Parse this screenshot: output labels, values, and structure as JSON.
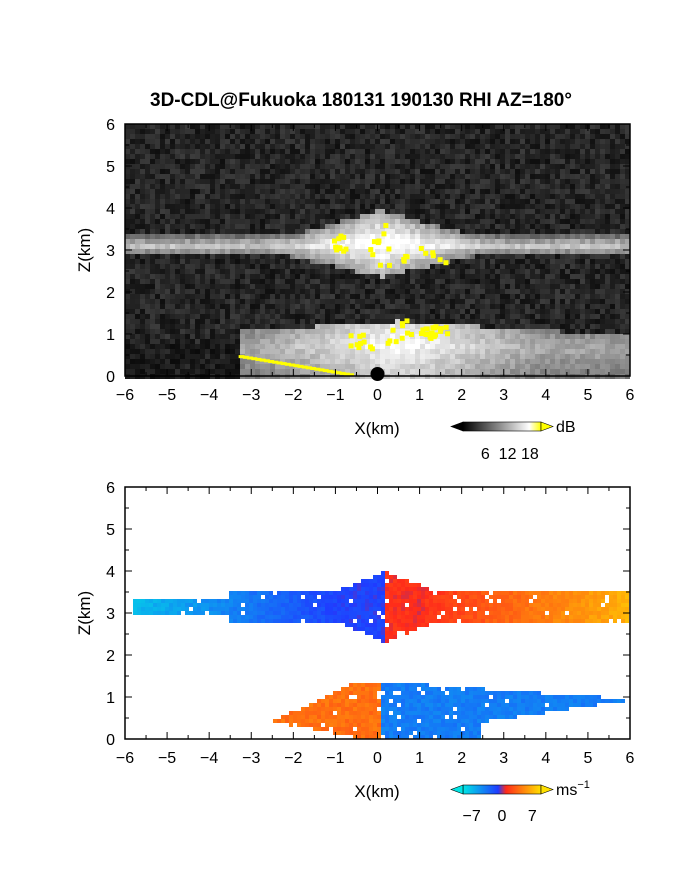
{
  "title": "3D-CDL@Fukuoka 180131 190130 RHI AZ=180°",
  "chart_data": [
    {
      "type": "heatmap",
      "quantity": "reflectivity",
      "xlabel": "X(km)",
      "ylabel": "Z(km)",
      "xlim": [
        -6,
        6
      ],
      "ylim": [
        0,
        6
      ],
      "xticks": [
        -6,
        -5,
        -4,
        -3,
        -2,
        -1,
        0,
        1,
        2,
        3,
        4,
        5,
        6
      ],
      "yticks": [
        0,
        1,
        2,
        3,
        4,
        5,
        6
      ],
      "colorbar": {
        "unit": "dB",
        "ticks": [
          6,
          12,
          18
        ],
        "range": [
          0,
          21
        ],
        "colors": [
          "#000000",
          "#ffffff",
          "#ffff00"
        ]
      },
      "layers": [
        {
          "name": "upper layer",
          "z_range": [
            2.85,
            3.35
          ],
          "x_range": [
            -6,
            6
          ],
          "peak_top_z": 3.9,
          "peak_x": 0.1
        },
        {
          "name": "lower layer",
          "z_range": [
            0,
            1.3
          ],
          "x_range": [
            -3.3,
            6
          ],
          "peak_top_z": 1.5,
          "peak_x": 0.5
        }
      ]
    },
    {
      "type": "heatmap",
      "quantity": "Doppler velocity",
      "xlabel": "X(km)",
      "ylabel": "Z(km)",
      "xlim": [
        -6,
        6
      ],
      "ylim": [
        0,
        6
      ],
      "xticks": [
        -6,
        -5,
        -4,
        -3,
        -2,
        -1,
        0,
        1,
        2,
        3,
        4,
        5,
        6
      ],
      "yticks": [
        0,
        1,
        2,
        3,
        4,
        5,
        6
      ],
      "colorbar": {
        "unit": "ms",
        "unit_superscript": "−1",
        "ticks": [
          "−7",
          "0",
          "7"
        ],
        "range": [
          -9,
          9
        ],
        "colors": [
          "#00e5e5",
          "#1f3cff",
          "#ff2a1a",
          "#ffe000"
        ]
      },
      "layers": [
        {
          "name": "upper layer",
          "z_range": [
            2.8,
            3.4
          ],
          "x_range": [
            -5.8,
            6
          ],
          "velocity_left": -7,
          "velocity_right": 7,
          "zero_crossing_x": 0.2
        },
        {
          "name": "lower layer",
          "z_range": [
            0,
            1.3
          ],
          "x_range": [
            -3.2,
            5.9
          ],
          "velocity_left": 4,
          "velocity_right": -4,
          "zero_crossing_x": 0.1
        }
      ]
    }
  ]
}
